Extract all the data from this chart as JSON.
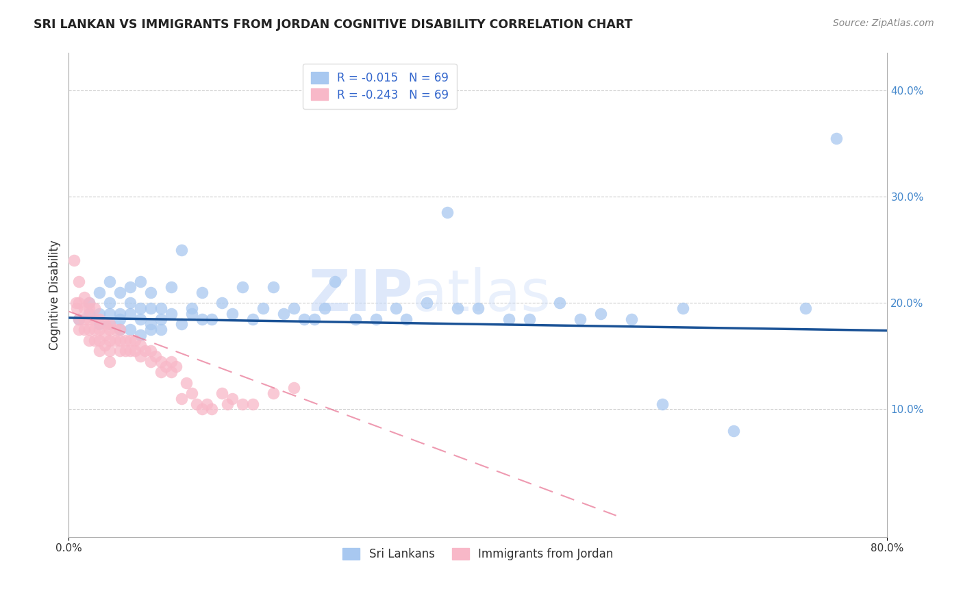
{
  "title": "SRI LANKAN VS IMMIGRANTS FROM JORDAN COGNITIVE DISABILITY CORRELATION CHART",
  "source": "Source: ZipAtlas.com",
  "ylabel_label": "Cognitive Disability",
  "xlim": [
    0.0,
    0.8
  ],
  "ylim": [
    -0.02,
    0.435
  ],
  "sri_lankan_color": "#a8c8f0",
  "sri_lankan_edge": "#7ab0e0",
  "jordan_color": "#f8b8c8",
  "jordan_edge": "#e890a8",
  "sri_lankan_line_color": "#1a5296",
  "jordan_line_color": "#e87090",
  "grid_color": "#cccccc",
  "watermark_zip": "ZIP",
  "watermark_atlas": "atlas",
  "legend_label1": "Sri Lankans",
  "legend_label2": "Immigrants from Jordan",
  "sri_lankans_x": [
    0.01,
    0.02,
    0.02,
    0.03,
    0.03,
    0.03,
    0.04,
    0.04,
    0.04,
    0.04,
    0.05,
    0.05,
    0.05,
    0.05,
    0.06,
    0.06,
    0.06,
    0.06,
    0.07,
    0.07,
    0.07,
    0.07,
    0.08,
    0.08,
    0.08,
    0.08,
    0.09,
    0.09,
    0.09,
    0.1,
    0.1,
    0.11,
    0.11,
    0.12,
    0.12,
    0.13,
    0.13,
    0.14,
    0.15,
    0.16,
    0.17,
    0.18,
    0.19,
    0.2,
    0.21,
    0.22,
    0.23,
    0.24,
    0.25,
    0.26,
    0.28,
    0.3,
    0.32,
    0.33,
    0.35,
    0.37,
    0.38,
    0.4,
    0.43,
    0.45,
    0.48,
    0.5,
    0.52,
    0.55,
    0.58,
    0.6,
    0.65,
    0.72,
    0.75
  ],
  "sri_lankans_y": [
    0.185,
    0.19,
    0.2,
    0.18,
    0.19,
    0.21,
    0.19,
    0.18,
    0.2,
    0.22,
    0.185,
    0.19,
    0.175,
    0.21,
    0.19,
    0.2,
    0.175,
    0.215,
    0.185,
    0.195,
    0.22,
    0.17,
    0.18,
    0.195,
    0.21,
    0.175,
    0.185,
    0.195,
    0.175,
    0.19,
    0.215,
    0.25,
    0.18,
    0.195,
    0.19,
    0.185,
    0.21,
    0.185,
    0.2,
    0.19,
    0.215,
    0.185,
    0.195,
    0.215,
    0.19,
    0.195,
    0.185,
    0.185,
    0.195,
    0.22,
    0.185,
    0.185,
    0.195,
    0.185,
    0.2,
    0.285,
    0.195,
    0.195,
    0.185,
    0.185,
    0.2,
    0.185,
    0.19,
    0.185,
    0.105,
    0.195,
    0.08,
    0.195,
    0.355
  ],
  "jordan_x": [
    0.005,
    0.007,
    0.008,
    0.01,
    0.01,
    0.01,
    0.01,
    0.015,
    0.015,
    0.015,
    0.015,
    0.02,
    0.02,
    0.02,
    0.02,
    0.02,
    0.025,
    0.025,
    0.025,
    0.025,
    0.03,
    0.03,
    0.03,
    0.03,
    0.035,
    0.035,
    0.035,
    0.04,
    0.04,
    0.04,
    0.04,
    0.04,
    0.045,
    0.045,
    0.05,
    0.05,
    0.05,
    0.055,
    0.055,
    0.06,
    0.06,
    0.065,
    0.065,
    0.07,
    0.07,
    0.075,
    0.08,
    0.08,
    0.085,
    0.09,
    0.09,
    0.095,
    0.1,
    0.1,
    0.105,
    0.11,
    0.115,
    0.12,
    0.125,
    0.13,
    0.135,
    0.14,
    0.15,
    0.155,
    0.16,
    0.17,
    0.18,
    0.2,
    0.22
  ],
  "jordan_y": [
    0.24,
    0.2,
    0.195,
    0.22,
    0.2,
    0.185,
    0.175,
    0.205,
    0.195,
    0.185,
    0.175,
    0.2,
    0.195,
    0.185,
    0.175,
    0.165,
    0.195,
    0.185,
    0.175,
    0.165,
    0.185,
    0.175,
    0.165,
    0.155,
    0.18,
    0.17,
    0.16,
    0.18,
    0.175,
    0.165,
    0.155,
    0.145,
    0.175,
    0.165,
    0.175,
    0.165,
    0.155,
    0.165,
    0.155,
    0.165,
    0.155,
    0.165,
    0.155,
    0.16,
    0.15,
    0.155,
    0.155,
    0.145,
    0.15,
    0.145,
    0.135,
    0.14,
    0.145,
    0.135,
    0.14,
    0.11,
    0.125,
    0.115,
    0.105,
    0.1,
    0.105,
    0.1,
    0.115,
    0.105,
    0.11,
    0.105,
    0.105,
    0.115,
    0.12
  ],
  "sri_line_x": [
    0.0,
    0.8
  ],
  "sri_line_y": [
    0.186,
    0.174
  ],
  "jor_line_x": [
    0.0,
    0.535
  ],
  "jor_line_y": [
    0.192,
    0.0
  ]
}
